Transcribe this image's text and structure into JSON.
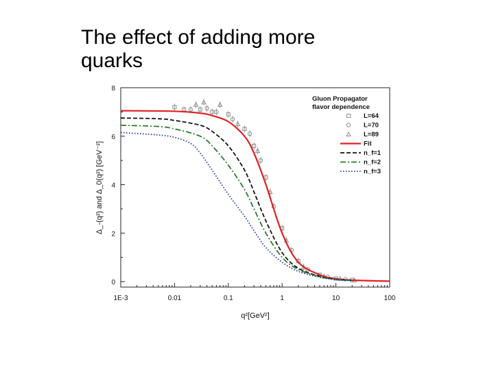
{
  "slide": {
    "title_line1": "The effect of adding more",
    "title_line2": "quarks"
  },
  "chart_data": {
    "type": "line",
    "xscale": "log",
    "xlim": [
      0.001,
      100
    ],
    "ylim": [
      0,
      8
    ],
    "xticks": [
      "1E-3",
      "0.01",
      "0.1",
      "1",
      "10",
      "100"
    ],
    "yticks": [
      "0",
      "2",
      "4",
      "6",
      "8"
    ],
    "xlabel": "q²[GeV²]",
    "ylabel": "Δ_-(q²) and Δ_0(q²) [GeV⁻²]",
    "legend": {
      "title_line1": "Gluon Propagator",
      "title_line2": "flavor dependence",
      "placement": "top-right"
    },
    "series": [
      {
        "name": "L=64",
        "kind": "points",
        "marker": "square",
        "color": "#8c8c8c",
        "x": [
          0.01,
          0.015,
          0.03,
          0.05,
          0.1,
          0.2,
          0.3,
          0.5,
          1,
          2,
          5,
          10,
          20
        ],
        "y": [
          7.2,
          7.1,
          7.1,
          7.0,
          6.9,
          6.3,
          5.6,
          4.3,
          2.2,
          0.85,
          0.28,
          0.13,
          0.07
        ]
      },
      {
        "name": "L=70",
        "kind": "points",
        "marker": "circle",
        "color": "#8c8c8c",
        "x": [
          0.02,
          0.04,
          0.06,
          0.12,
          0.25,
          0.4,
          0.7,
          1.5,
          3,
          7,
          15
        ],
        "y": [
          7.1,
          7.15,
          7.0,
          6.7,
          6.1,
          5.0,
          3.1,
          1.3,
          0.5,
          0.2,
          0.1
        ]
      },
      {
        "name": "L=89",
        "kind": "points",
        "marker": "triangle",
        "color": "#8c8c8c",
        "x": [
          0.025,
          0.035,
          0.07,
          0.15,
          0.35,
          0.6,
          1.2,
          2.5,
          6,
          12,
          22
        ],
        "y": [
          7.3,
          7.4,
          7.3,
          6.5,
          5.4,
          3.7,
          1.7,
          0.6,
          0.22,
          0.12,
          0.06
        ]
      },
      {
        "name": "Fit",
        "kind": "line",
        "dash": "solid",
        "color": "#e02020",
        "x": [
          0.001,
          0.01,
          0.03,
          0.05,
          0.1,
          0.2,
          0.3,
          0.5,
          1,
          2,
          5,
          10,
          20,
          50,
          100
        ],
        "y": [
          7.05,
          7.03,
          6.95,
          6.85,
          6.6,
          6.0,
          5.3,
          4.0,
          2.0,
          0.8,
          0.28,
          0.12,
          0.06,
          0.03,
          0.02
        ]
      },
      {
        "name": "n_f=1",
        "kind": "line",
        "dash": "dashed",
        "color": "#111111",
        "x": [
          0.001,
          0.005,
          0.01,
          0.03,
          0.05,
          0.1,
          0.2,
          0.3,
          0.5,
          1,
          2,
          5,
          10,
          20
        ],
        "y": [
          6.75,
          6.72,
          6.65,
          6.45,
          6.2,
          5.6,
          4.6,
          3.7,
          2.5,
          1.2,
          0.55,
          0.22,
          0.1,
          0.05
        ]
      },
      {
        "name": "n_f=2",
        "kind": "line",
        "dash": "dashdot",
        "color": "#2a7a2a",
        "x": [
          0.001,
          0.005,
          0.01,
          0.03,
          0.05,
          0.1,
          0.2,
          0.3,
          0.5,
          1,
          2,
          5,
          10,
          20
        ],
        "y": [
          6.45,
          6.4,
          6.3,
          6.0,
          5.6,
          4.8,
          3.8,
          3.0,
          2.0,
          1.0,
          0.5,
          0.2,
          0.09,
          0.05
        ]
      },
      {
        "name": "n_f=3",
        "kind": "line",
        "dash": "dotted",
        "color": "#2030b0",
        "x": [
          0.001,
          0.005,
          0.01,
          0.02,
          0.03,
          0.05,
          0.1,
          0.2,
          0.3,
          0.5,
          1,
          2,
          5,
          10,
          20
        ],
        "y": [
          6.15,
          6.05,
          5.95,
          5.7,
          5.3,
          4.6,
          3.6,
          2.7,
          2.1,
          1.4,
          0.8,
          0.42,
          0.18,
          0.08,
          0.04
        ]
      }
    ]
  }
}
